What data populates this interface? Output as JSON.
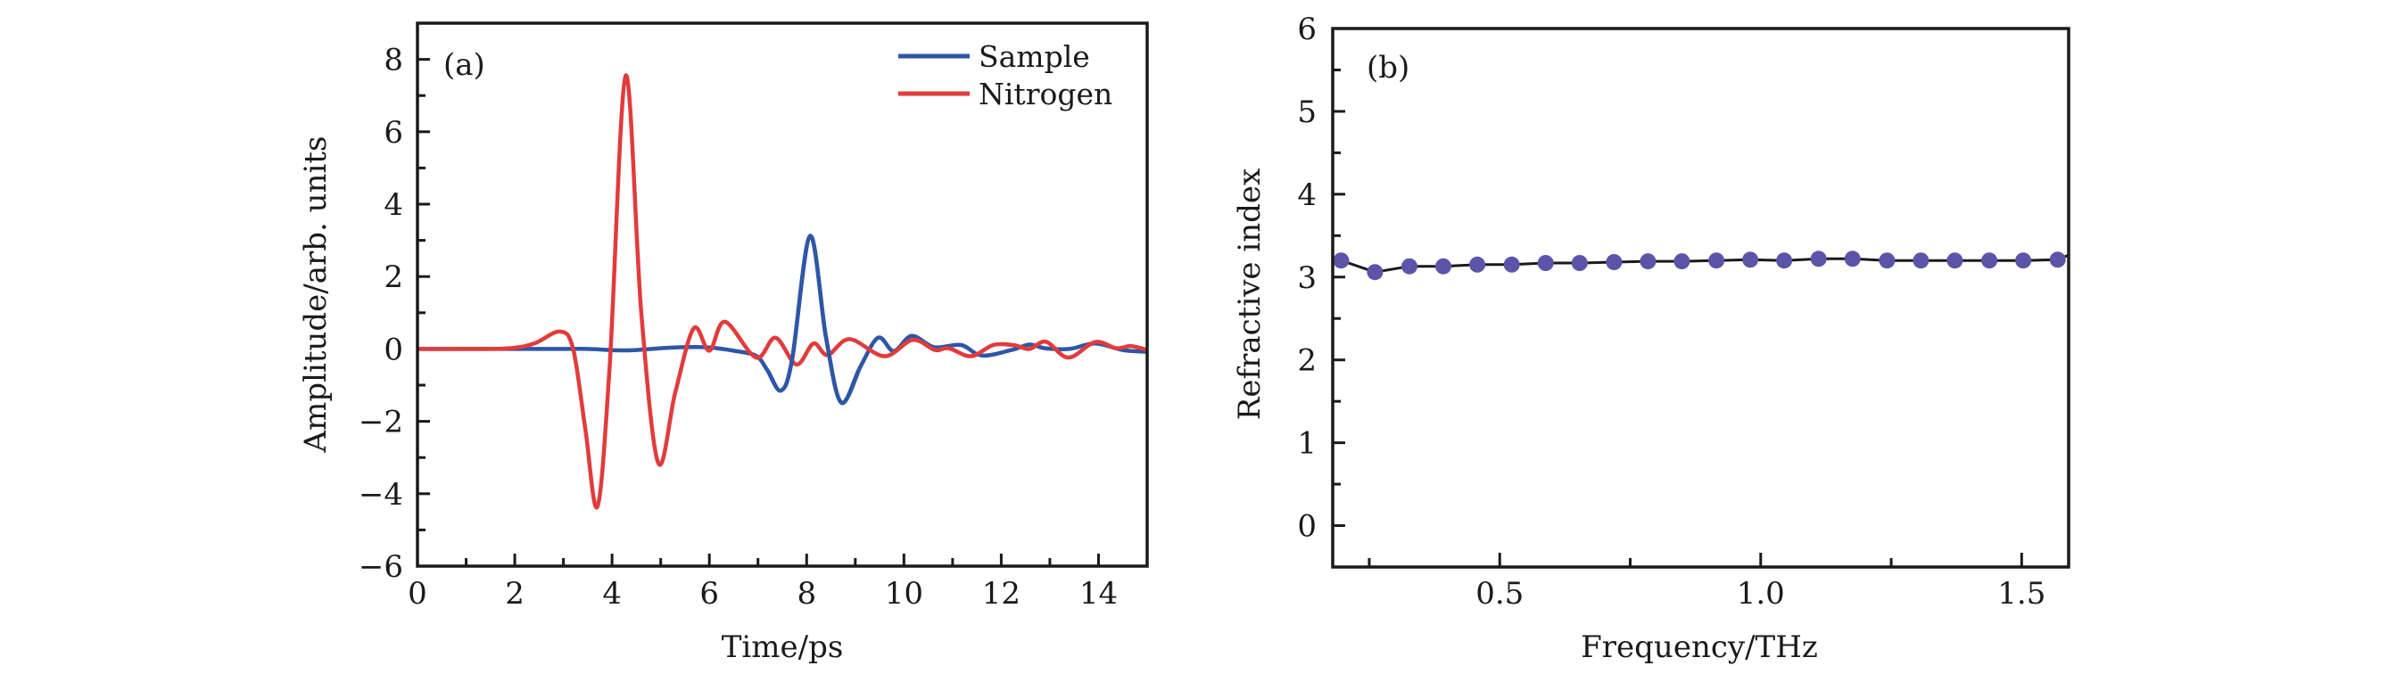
{
  "chart_data": [
    {
      "type": "line",
      "panel_label": "(a)",
      "xlabel": "Time/ps",
      "ylabel": "Amplitude/arb. units",
      "xlim": [
        0,
        15
      ],
      "ylim": [
        -6,
        9
      ],
      "xticks": [
        0,
        2,
        4,
        6,
        8,
        10,
        12,
        14
      ],
      "xtick_labels": [
        "0",
        "2",
        "4",
        "6",
        "8",
        "10",
        "12",
        "14"
      ],
      "xminor_step": 1,
      "yticks": [
        -6,
        -4,
        -2,
        0,
        2,
        4,
        6,
        8
      ],
      "ytick_labels": [
        "−6",
        "−4",
        "−2",
        "0",
        "2",
        "4",
        "6",
        "8"
      ],
      "yminor_step": 1,
      "grid": false,
      "legend_position": "top-right",
      "series": [
        {
          "name": "Sample",
          "color": "#2f56a6",
          "x": [
            0,
            1,
            2,
            3,
            3.5,
            4.3,
            5.0,
            5.5,
            6.0,
            6.5,
            6.96,
            7.2,
            7.47,
            7.7,
            8.07,
            8.4,
            8.71,
            9.1,
            9.47,
            9.79,
            10.16,
            10.62,
            11.17,
            11.6,
            12.21,
            12.58,
            12.9,
            13.4,
            13.93,
            14.5,
            15
          ],
          "y": [
            0,
            0,
            0,
            0,
            0,
            -0.04,
            0.02,
            0.05,
            0.04,
            -0.05,
            -0.19,
            -0.6,
            -1.15,
            -0.3,
            3.12,
            0.3,
            -1.48,
            -0.5,
            0.31,
            -0.06,
            0.36,
            0.05,
            0.11,
            -0.18,
            -0.03,
            0.12,
            0.02,
            0.0,
            0.15,
            -0.03,
            -0.08
          ]
        },
        {
          "name": "Nitrogen",
          "color": "#e23b3b",
          "x": [
            0,
            1,
            1.9,
            2.4,
            2.93,
            3.2,
            3.45,
            3.7,
            3.95,
            4.28,
            4.6,
            4.95,
            5.3,
            5.68,
            6.0,
            6.32,
            6.96,
            7.36,
            7.79,
            8.14,
            8.43,
            8.88,
            9.6,
            10.18,
            10.64,
            10.92,
            11.38,
            11.84,
            12.27,
            12.58,
            12.92,
            13.38,
            13.93,
            14.36,
            14.67,
            15
          ],
          "y": [
            0,
            0,
            0.02,
            0.15,
            0.48,
            0.0,
            -2.2,
            -4.35,
            -0.5,
            7.55,
            1.0,
            -3.15,
            -1.2,
            0.57,
            -0.05,
            0.75,
            -0.24,
            0.31,
            -0.43,
            0.15,
            -0.17,
            0.27,
            -0.2,
            0.25,
            -0.03,
            0.02,
            -0.2,
            0.11,
            0.1,
            0.0,
            0.2,
            -0.24,
            0.19,
            0.02,
            0.08,
            -0.03
          ]
        }
      ]
    },
    {
      "type": "line",
      "panel_label": "(b)",
      "xlabel": "Frequency/THz",
      "ylabel": "Refractive index",
      "xlim": [
        0.18,
        1.59
      ],
      "ylim": [
        -0.5,
        6
      ],
      "xticks": [
        0.5,
        1.0,
        1.5
      ],
      "xtick_labels": [
        "0.5",
        "1.0",
        "1.5"
      ],
      "xminor_ticks": [
        0.25,
        0.75,
        1.25
      ],
      "yticks": [
        0,
        1,
        2,
        3,
        4,
        5,
        6
      ],
      "ytick_labels": [
        "0",
        "1",
        "2",
        "3",
        "4",
        "5",
        "6"
      ],
      "yminor_step": 0.5,
      "grid": false,
      "series": [
        {
          "name": "Refractive index",
          "color": "#5b54a8",
          "line_color": "#1a1a1a",
          "markers": true,
          "x": [
            0.196,
            0.261,
            0.327,
            0.392,
            0.457,
            0.523,
            0.588,
            0.653,
            0.719,
            0.784,
            0.849,
            0.915,
            0.98,
            1.045,
            1.111,
            1.176,
            1.242,
            1.307,
            1.372,
            1.438,
            1.503,
            1.569,
            1.634
          ],
          "y": [
            3.2,
            3.06,
            3.13,
            3.13,
            3.15,
            3.15,
            3.17,
            3.17,
            3.18,
            3.19,
            3.19,
            3.2,
            3.21,
            3.2,
            3.22,
            3.22,
            3.2,
            3.2,
            3.2,
            3.2,
            3.2,
            3.21,
            3.38
          ]
        }
      ]
    }
  ]
}
